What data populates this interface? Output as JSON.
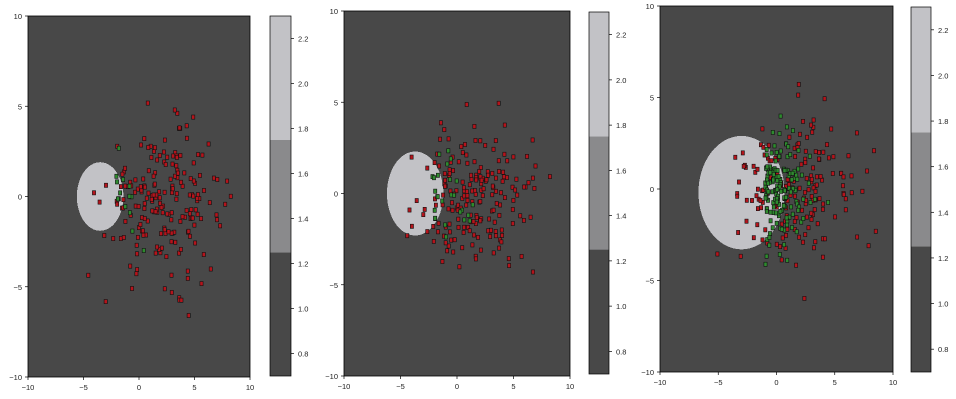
{
  "colors": {
    "background_region": "#484848",
    "inner_region": "#c2c2c6",
    "axis": "#000000",
    "red_point_fill": "#b5141c",
    "green_point_fill": "#2e8a2e",
    "point_edge": "#111111",
    "colorbar_bands": [
      "#484848",
      "#8a8a8c",
      "#c2c2c6"
    ]
  },
  "chart_data": [
    {
      "type": "scatter",
      "title": "",
      "xlabel": "",
      "ylabel": "",
      "xlim": [
        -10,
        10
      ],
      "ylim": [
        -10,
        10
      ],
      "x_ticks": [
        -10,
        -5,
        0,
        5,
        10
      ],
      "y_ticks": [
        -10,
        -5,
        0,
        5,
        10
      ],
      "grid": false,
      "decision_region": {
        "shape": "ellipse",
        "center": [
          -3.5,
          0
        ],
        "radius_x": 2.1,
        "radius_y": 1.9
      },
      "point_cloud": {
        "center": [
          2.2,
          -0.3
        ],
        "spread": [
          2.6,
          2.0
        ],
        "red_count": 200,
        "green_count": 14
      },
      "colorbar": {
        "range": [
          0.7,
          2.3
        ],
        "ticks": [
          0.8,
          1.0,
          1.2,
          1.4,
          1.6,
          1.8,
          2.0,
          2.2
        ],
        "bands": [
          [
            0.7,
            1.25
          ],
          [
            1.25,
            1.75
          ],
          [
            1.75,
            2.3
          ]
        ]
      }
    },
    {
      "type": "scatter",
      "title": "",
      "xlabel": "",
      "ylabel": "",
      "xlim": [
        -10,
        10
      ],
      "ylim": [
        -10,
        10
      ],
      "x_ticks": [
        -10,
        -5,
        0,
        5,
        10
      ],
      "y_ticks": [
        -10,
        -5,
        0,
        5,
        10
      ],
      "grid": false,
      "decision_region": {
        "shape": "ellipse",
        "center": [
          -3.7,
          0
        ],
        "radius_x": 2.5,
        "radius_y": 2.3
      },
      "point_cloud": {
        "center": [
          2.0,
          -0.4
        ],
        "spread": [
          2.6,
          2.0
        ],
        "red_count": 190,
        "green_count": 25
      },
      "colorbar": {
        "range": [
          0.7,
          2.3
        ],
        "ticks": [
          0.8,
          1.0,
          1.2,
          1.4,
          1.6,
          1.8,
          2.0,
          2.2
        ],
        "bands": [
          [
            0.7,
            1.25
          ],
          [
            1.25,
            1.75
          ],
          [
            1.75,
            2.3
          ]
        ]
      }
    },
    {
      "type": "scatter",
      "title": "",
      "xlabel": "",
      "ylabel": "",
      "xlim": [
        -10,
        10
      ],
      "ylim": [
        -10,
        10
      ],
      "x_ticks": [
        -10,
        -5,
        0,
        5,
        10
      ],
      "y_ticks": [
        -10,
        -5,
        0,
        5,
        10
      ],
      "grid": false,
      "decision_region": {
        "shape": "ellipse",
        "center": [
          -3.0,
          -0.2
        ],
        "radius_x": 3.7,
        "radius_y": 3.1
      },
      "point_cloud": {
        "center": [
          1.3,
          -0.3
        ],
        "spread": [
          2.5,
          2.0
        ],
        "red_count": 170,
        "green_count": 150
      },
      "colorbar": {
        "range": [
          0.7,
          2.3
        ],
        "ticks": [
          0.8,
          1.0,
          1.2,
          1.4,
          1.6,
          1.8,
          2.0,
          2.2
        ],
        "bands": [
          [
            0.7,
            1.25
          ],
          [
            1.25,
            1.75
          ],
          [
            1.75,
            2.3
          ]
        ]
      }
    }
  ]
}
